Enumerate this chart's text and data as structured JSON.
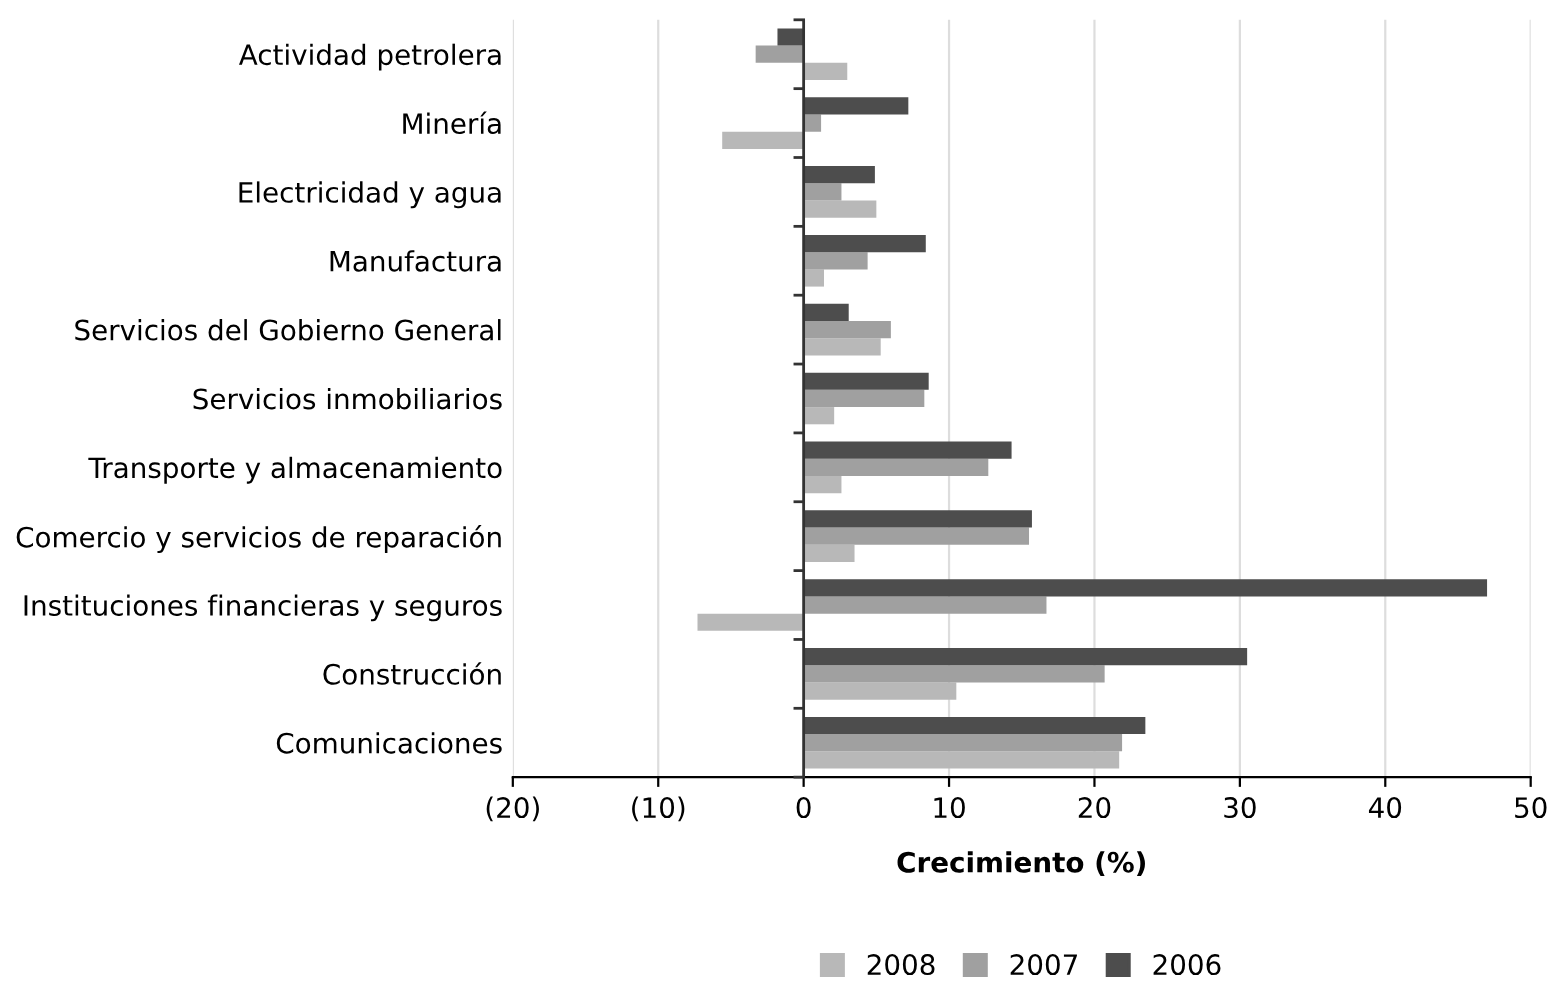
{
  "chart_data": {
    "type": "bar",
    "orientation": "horizontal",
    "xlabel": "Crecimiento (%)",
    "categories": [
      "Actividad petrolera",
      "Minería",
      "Electricidad y agua",
      "Manufactura",
      "Servicios del Gobierno General",
      "Servicios inmobiliarios",
      "Transporte y almacenamiento",
      "Comercio y servicios de reparación",
      "Instituciones financieras y seguros",
      "Construcción",
      "Comunicaciones"
    ],
    "series": [
      {
        "name": "2008",
        "color": "#b8b8b8",
        "values": [
          3.0,
          -5.6,
          5.0,
          1.4,
          5.3,
          2.1,
          2.6,
          3.5,
          -7.3,
          10.5,
          21.7
        ]
      },
      {
        "name": "2007",
        "color": "#a0a0a0",
        "values": [
          -3.3,
          1.2,
          2.6,
          4.4,
          6.0,
          8.3,
          12.7,
          15.5,
          16.7,
          20.7,
          21.9
        ]
      },
      {
        "name": "2006",
        "color": "#4d4d4d",
        "values": [
          -1.8,
          7.2,
          4.9,
          8.4,
          3.1,
          8.6,
          14.3,
          15.7,
          47.0,
          30.5,
          23.5
        ]
      }
    ],
    "xlim": [
      -20,
      50
    ],
    "xticks": [
      {
        "value": -20,
        "label": "(20)"
      },
      {
        "value": -10,
        "label": "(10)"
      },
      0,
      10,
      20,
      30,
      40,
      50
    ],
    "grid": "x",
    "legend": "bottom"
  }
}
